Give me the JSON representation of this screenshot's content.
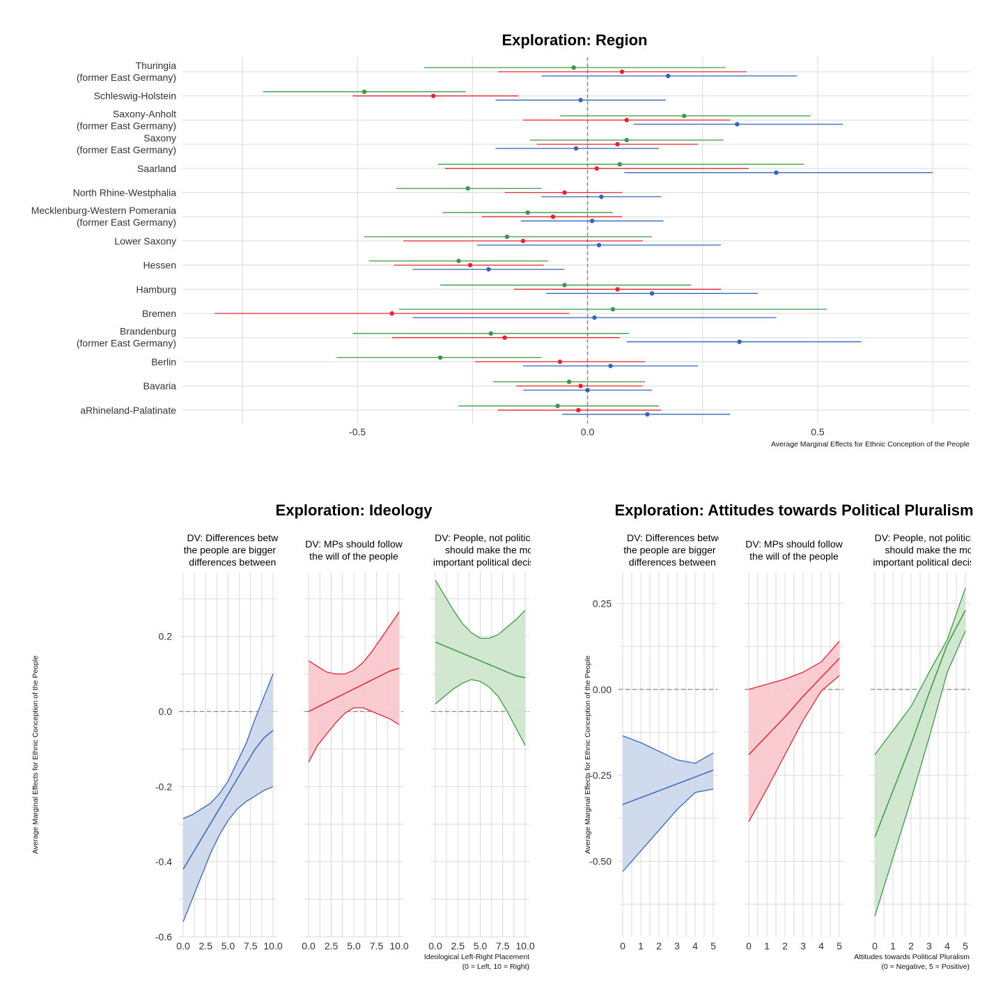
{
  "colors": {
    "blue": "#3366bb",
    "red": "#e8232e",
    "green": "#3a9a45",
    "blue_fill": "#cdd8ec",
    "red_fill": "#fac8cd",
    "green_fill": "#cfe6cc",
    "grid": "#d9d9d9",
    "zero_line": "#888888"
  },
  "chart_data": [
    {
      "type": "dot-whisker",
      "title": "Exploration: Region",
      "xlabel": "Average Marginal Effects for Ethnic Conception of the People",
      "ylabel": "",
      "xlim": [
        -0.88,
        0.83
      ],
      "x_ticks": [
        -0.5,
        0.0,
        0.5
      ],
      "x_tick_labels": [
        "-0.5",
        "0.0",
        "0.5"
      ],
      "grid": true,
      "categories": [
        [
          "Thuringia",
          "(former East Germany)"
        ],
        [
          "Schleswig-Holstein"
        ],
        [
          "Saxony-Anholt",
          "(former East Germany)"
        ],
        [
          "Saxony",
          "(former East Germany)"
        ],
        [
          "Saarland"
        ],
        [
          "North Rhine-Westphalia"
        ],
        [
          "Mecklenburg-Western Pomerania",
          "(former East Germany)"
        ],
        [
          "Lower Saxony"
        ],
        [
          "Hessen"
        ],
        [
          "Hamburg"
        ],
        [
          "Bremen"
        ],
        [
          "Brandenburg",
          "(former East Germany)"
        ],
        [
          "Berlin"
        ],
        [
          "Bavaria"
        ],
        [
          "aRhineland-Palatinate"
        ]
      ],
      "series": [
        {
          "color": "green",
          "est": [
            -0.03,
            -0.485,
            0.21,
            0.085,
            0.07,
            -0.26,
            -0.13,
            -0.175,
            -0.28,
            -0.05,
            0.055,
            -0.21,
            -0.32,
            -0.04,
            -0.065
          ],
          "lo": [
            -0.355,
            -0.705,
            -0.06,
            -0.125,
            -0.325,
            -0.415,
            -0.315,
            -0.485,
            -0.475,
            -0.32,
            -0.41,
            -0.51,
            -0.545,
            -0.205,
            -0.28
          ],
          "hi": [
            0.3,
            -0.265,
            0.485,
            0.295,
            0.47,
            -0.1,
            0.055,
            0.14,
            -0.085,
            0.225,
            0.52,
            0.09,
            -0.1,
            0.125,
            0.155
          ]
        },
        {
          "color": "red",
          "est": [
            0.075,
            -0.335,
            0.085,
            0.065,
            0.02,
            -0.05,
            -0.075,
            -0.14,
            -0.255,
            0.065,
            -0.425,
            -0.18,
            -0.06,
            -0.015,
            -0.02
          ],
          "lo": [
            -0.195,
            -0.51,
            -0.14,
            -0.11,
            -0.31,
            -0.18,
            -0.23,
            -0.4,
            -0.42,
            -0.16,
            -0.81,
            -0.425,
            -0.245,
            -0.155,
            -0.195
          ],
          "hi": [
            0.345,
            -0.15,
            0.31,
            0.24,
            0.35,
            0.075,
            0.075,
            0.12,
            -0.095,
            0.29,
            -0.04,
            0.07,
            0.125,
            0.12,
            0.16
          ]
        },
        {
          "color": "blue",
          "est": [
            0.175,
            -0.015,
            0.325,
            -0.025,
            0.41,
            0.03,
            0.01,
            0.025,
            -0.215,
            0.14,
            0.015,
            0.33,
            0.05,
            0.0,
            0.13
          ],
          "lo": [
            -0.1,
            -0.2,
            0.1,
            -0.2,
            0.08,
            -0.1,
            -0.145,
            -0.24,
            -0.38,
            -0.09,
            -0.38,
            0.085,
            -0.14,
            -0.14,
            -0.055
          ],
          "hi": [
            0.455,
            0.17,
            0.555,
            0.155,
            0.75,
            0.16,
            0.165,
            0.29,
            -0.05,
            0.37,
            0.41,
            0.595,
            0.24,
            0.14,
            0.31
          ]
        }
      ]
    },
    {
      "type": "area",
      "title": "Exploration: Ideology",
      "xlabel": "Ideological Left-Right Placement\n(0 = Left, 10 = Right)",
      "ylabel": "Average Marginal Effects for Ethnic Conception of the People",
      "ylim": [
        -0.6,
        0.37
      ],
      "y_ticks": [
        -0.6,
        -0.4,
        -0.2,
        0.0,
        0.2
      ],
      "y_tick_labels": [
        "-0.6",
        "-0.4",
        "-0.2",
        "0.0",
        "0.2"
      ],
      "x_ticks": [
        0,
        2.5,
        5,
        7.5,
        10
      ],
      "x_tick_labels": [
        "0.0",
        "2.5",
        "5.0",
        "7.5",
        "10.0"
      ],
      "panels": [
        {
          "title": "DV: Differences between\nthe people are bigger than\ndifferences between the",
          "color": "blue",
          "x": [
            0,
            1,
            2,
            3,
            4,
            5,
            6,
            7,
            8,
            9,
            10
          ],
          "est": [
            -0.42,
            -0.38,
            -0.34,
            -0.3,
            -0.26,
            -0.22,
            -0.18,
            -0.14,
            -0.1,
            -0.07,
            -0.05
          ],
          "lo": [
            -0.56,
            -0.5,
            -0.44,
            -0.38,
            -0.33,
            -0.29,
            -0.26,
            -0.24,
            -0.225,
            -0.21,
            -0.2
          ],
          "hi": [
            -0.285,
            -0.275,
            -0.26,
            -0.245,
            -0.22,
            -0.185,
            -0.135,
            -0.085,
            -0.02,
            0.04,
            0.1
          ]
        },
        {
          "title": "DV: MPs should follow\nthe will of the people",
          "color": "red",
          "x": [
            0,
            1,
            2,
            3,
            4,
            5,
            6,
            7,
            8,
            9,
            10
          ],
          "est": [
            0.0,
            0.012,
            0.024,
            0.036,
            0.048,
            0.06,
            0.072,
            0.084,
            0.096,
            0.108,
            0.115
          ],
          "lo": [
            -0.135,
            -0.09,
            -0.06,
            -0.03,
            -0.005,
            0.01,
            0.01,
            0.0,
            -0.01,
            -0.02,
            -0.035
          ],
          "hi": [
            0.135,
            0.12,
            0.105,
            0.1,
            0.1,
            0.11,
            0.13,
            0.16,
            0.195,
            0.23,
            0.265
          ]
        },
        {
          "title": "DV: People, not politicians,\nshould make the most\nimportant political decisions",
          "color": "green",
          "x": [
            0,
            1,
            2,
            3,
            4,
            5,
            6,
            7,
            8,
            9,
            10
          ],
          "est": [
            0.185,
            0.175,
            0.165,
            0.155,
            0.145,
            0.135,
            0.125,
            0.115,
            0.105,
            0.095,
            0.09
          ],
          "lo": [
            0.02,
            0.04,
            0.06,
            0.075,
            0.085,
            0.08,
            0.065,
            0.04,
            0.0,
            -0.045,
            -0.09
          ],
          "hi": [
            0.35,
            0.31,
            0.27,
            0.235,
            0.21,
            0.195,
            0.195,
            0.205,
            0.225,
            0.245,
            0.27
          ]
        }
      ]
    },
    {
      "type": "area",
      "title": "Exploration: Attitudes towards Political Pluralism",
      "xlabel": "Attitudes towards Political Pluralism\n(0 = Negative, 5 = Positive)",
      "ylabel": "Average Marginal Effects for Ethnic Conception of the People",
      "ylim": [
        -0.72,
        0.34
      ],
      "y_ticks": [
        -0.5,
        -0.25,
        0.0,
        0.25
      ],
      "y_tick_labels": [
        "-0.50",
        "-0.25",
        "0.00",
        "0.25"
      ],
      "x_ticks": [
        0,
        1,
        2,
        3,
        4,
        5
      ],
      "x_tick_labels": [
        "0",
        "1",
        "2",
        "3",
        "4",
        "5"
      ],
      "panels": [
        {
          "title": "DV: Differences between\nthe people are bigger than\ndifferences between the",
          "color": "blue",
          "x": [
            0,
            1,
            2,
            3,
            4,
            5
          ],
          "est": [
            -0.335,
            -0.315,
            -0.295,
            -0.275,
            -0.255,
            -0.235
          ],
          "lo": [
            -0.53,
            -0.47,
            -0.41,
            -0.35,
            -0.3,
            -0.29
          ],
          "hi": [
            -0.135,
            -0.155,
            -0.18,
            -0.205,
            -0.215,
            -0.185
          ]
        },
        {
          "title": "DV: MPs should follow\nthe will of the people",
          "color": "red",
          "x": [
            0,
            1,
            2,
            3,
            4,
            5
          ],
          "est": [
            -0.19,
            -0.135,
            -0.08,
            -0.02,
            0.035,
            0.09
          ],
          "lo": [
            -0.385,
            -0.29,
            -0.19,
            -0.09,
            -0.005,
            0.04
          ],
          "hi": [
            0.0,
            0.015,
            0.03,
            0.05,
            0.08,
            0.14
          ]
        },
        {
          "title": "DV: People, not politicians,\nshould make the most\nimportant political decisions",
          "color": "green",
          "x": [
            0,
            1,
            2,
            3,
            4,
            5
          ],
          "est": [
            -0.43,
            -0.295,
            -0.16,
            -0.01,
            0.13,
            0.23
          ],
          "lo": [
            -0.66,
            -0.49,
            -0.32,
            -0.14,
            0.05,
            0.17
          ],
          "hi": [
            -0.19,
            -0.12,
            -0.05,
            0.05,
            0.145,
            0.295
          ]
        }
      ]
    }
  ]
}
